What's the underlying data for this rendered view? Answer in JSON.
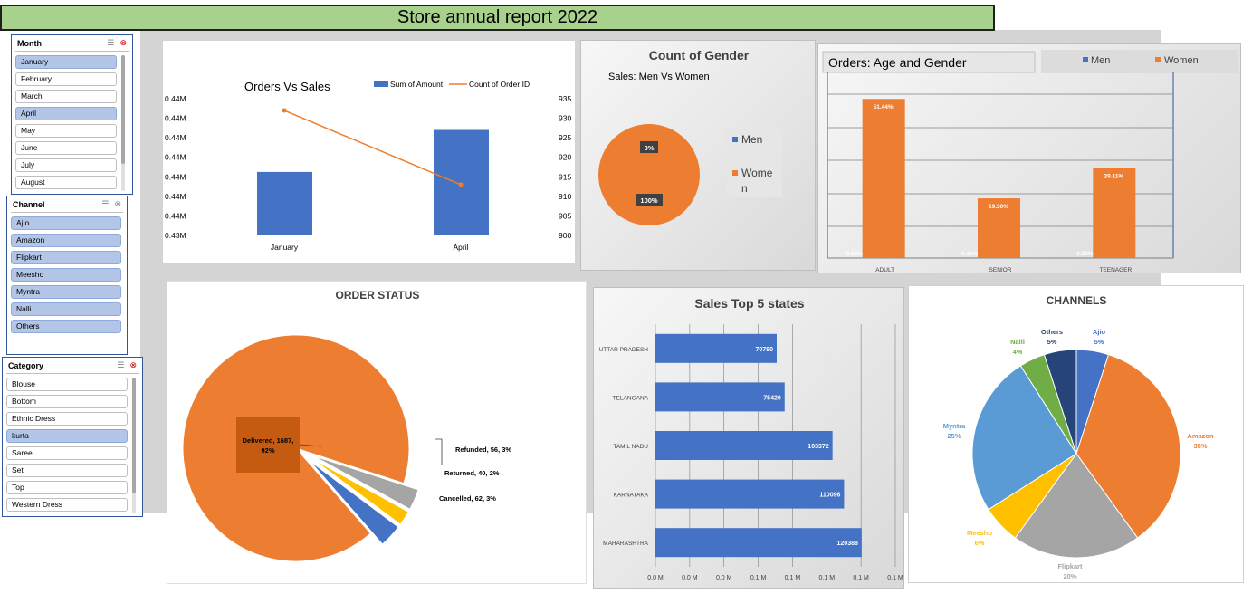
{
  "report_title": "Store annual report 2022",
  "slicers": {
    "month": {
      "title": "Month",
      "items": [
        {
          "label": "January",
          "selected": true
        },
        {
          "label": "February",
          "selected": false
        },
        {
          "label": "March",
          "selected": false
        },
        {
          "label": "April",
          "selected": true
        },
        {
          "label": "May",
          "selected": false
        },
        {
          "label": "June",
          "selected": false
        },
        {
          "label": "July",
          "selected": false
        },
        {
          "label": "August",
          "selected": false
        }
      ]
    },
    "channel": {
      "title": "Channel",
      "items": [
        {
          "label": "Ajio",
          "selected": true
        },
        {
          "label": "Amazon",
          "selected": true
        },
        {
          "label": "Flipkart",
          "selected": true
        },
        {
          "label": "Meesho",
          "selected": true
        },
        {
          "label": "Myntra",
          "selected": true
        },
        {
          "label": "Nalli",
          "selected": true
        },
        {
          "label": "Others",
          "selected": true
        }
      ]
    },
    "category": {
      "title": "Category",
      "items": [
        {
          "label": "Blouse",
          "selected": false
        },
        {
          "label": "Bottom",
          "selected": false
        },
        {
          "label": "Ethnic Dress",
          "selected": false
        },
        {
          "label": "kurta",
          "selected": true
        },
        {
          "label": "Saree",
          "selected": false
        },
        {
          "label": "Set",
          "selected": false
        },
        {
          "label": "Top",
          "selected": false
        },
        {
          "label": "Western Dress",
          "selected": false
        }
      ]
    }
  },
  "colors": {
    "blue": "#4472c4",
    "orange": "#ed7d31",
    "gray": "#a5a5a5",
    "yellow": "#ffc000",
    "lightblue": "#5b9bd5",
    "green": "#70ad47",
    "navy": "#264478",
    "title_green": "#a9d18e",
    "selected": "#b4c6e7"
  },
  "chart_data": [
    {
      "type": "bar",
      "title": "Orders Vs Sales",
      "categories": [
        "January",
        "April"
      ],
      "series": [
        {
          "name": "Sum of Amount",
          "kind": "bar",
          "axis": "left",
          "values": [
            0.4365,
            0.4408
          ]
        },
        {
          "name": "Count of Order ID",
          "kind": "line",
          "axis": "right",
          "values": [
            932,
            913
          ]
        }
      ],
      "left_ticks": [
        "0.44M",
        "0.44M",
        "0.44M",
        "0.44M",
        "0.44M",
        "0.44M",
        "0.44M",
        "0.43M"
      ],
      "right_ticks": [
        "935",
        "930",
        "925",
        "920",
        "915",
        "910",
        "905",
        "900"
      ],
      "ylim_left": [
        0.43,
        0.444
      ],
      "ylim_right": [
        900,
        935
      ]
    },
    {
      "type": "pie",
      "title": "Count of Gender",
      "subtitle": "Sales: Men Vs Women",
      "labels": [
        "Men",
        "Women"
      ],
      "legend_labels": [
        "Men",
        "Wome\nn"
      ],
      "values": [
        0,
        100
      ],
      "data_labels": [
        "0%",
        "100%"
      ]
    },
    {
      "type": "bar",
      "title": "Orders: Age and Gender",
      "categories": [
        "ADULT",
        "SENIOR",
        "TEENAGER"
      ],
      "series": [
        {
          "name": "Men",
          "values": [
            0.05,
            0.11,
            0.0
          ],
          "labels": [
            "0.05%",
            "0.11%",
            "0.00%"
          ]
        },
        {
          "name": "Women",
          "values": [
            51.44,
            19.3,
            29.11
          ],
          "labels": [
            "51.44%",
            "19.30%",
            "29.11%"
          ]
        }
      ],
      "ylim": [
        0,
        60
      ]
    },
    {
      "type": "pie",
      "title": "ORDER STATUS",
      "labels": [
        "Delivered",
        "Refunded",
        "Returned",
        "Cancelled"
      ],
      "values": [
        1687,
        56,
        40,
        62
      ],
      "percents": [
        92,
        3,
        2,
        3
      ],
      "data_labels": [
        "Delivered, 1687,\n92%",
        "Refunded, 56, 3%",
        "Returned, 40, 2%",
        "Cancelled, 62, 3%"
      ]
    },
    {
      "type": "bar",
      "orientation": "horizontal",
      "title": "Sales Top 5 states",
      "categories": [
        "UTTAR PRADESH",
        "TELANGANA",
        "TAMIL NADU",
        "KARNATAKA",
        "MAHARASHTRA"
      ],
      "values": [
        70790,
        75420,
        103372,
        110096,
        120388
      ],
      "x_ticks": [
        "0.0 M",
        "0.0 M",
        "0.0 M",
        "0.1 M",
        "0.1 M",
        "0.1 M",
        "0.1 M",
        "0.1 M"
      ],
      "xlim": [
        0,
        140000
      ]
    },
    {
      "type": "pie",
      "title": "CHANNELS",
      "labels": [
        "Ajio",
        "Amazon",
        "Flipkart",
        "Meesho",
        "Myntra",
        "Nalli",
        "Others"
      ],
      "values": [
        5,
        35,
        20,
        6,
        25,
        4,
        5
      ],
      "data_labels": [
        "5%",
        "35%",
        "20%",
        "6%",
        "25%",
        "4%",
        "5%"
      ]
    }
  ]
}
